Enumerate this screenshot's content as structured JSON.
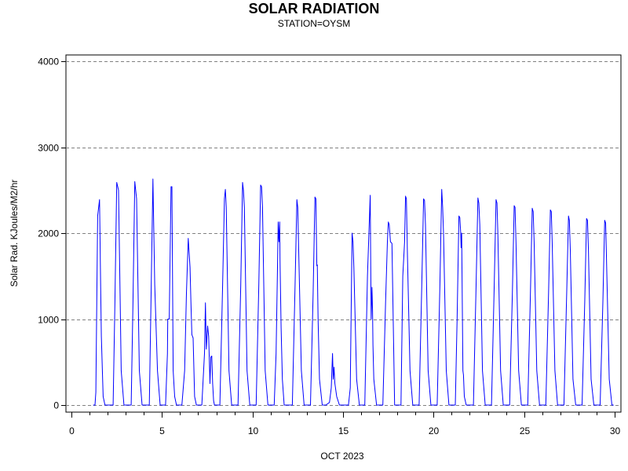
{
  "chart_data": {
    "type": "line",
    "title": "SOLAR RADIATION",
    "subtitle": "STATION=OYSM",
    "xlabel": "OCT 2023",
    "ylabel": "Solar Rad. KJoules/M2/hr",
    "xlim": [
      0,
      30
    ],
    "ylim": [
      0,
      4000
    ],
    "x_ticks": [
      0,
      5,
      10,
      15,
      20,
      25,
      30
    ],
    "y_ticks": [
      0,
      1000,
      2000,
      3000,
      4000
    ],
    "grid": "horizontal dashed",
    "series": [
      {
        "color": "#0000ff",
        "x": [
          1.2,
          1.3,
          1.35,
          1.45,
          1.55,
          1.6,
          1.65,
          1.75,
          1.85,
          2.0,
          2.3,
          2.4,
          2.5,
          2.6,
          2.75,
          2.9,
          3.3,
          3.4,
          3.5,
          3.6,
          3.75,
          3.9,
          4.3,
          4.4,
          4.5,
          4.6,
          4.75,
          4.9,
          5.2,
          5.3,
          5.32,
          5.4,
          5.5,
          5.55,
          5.62,
          5.7,
          5.8,
          5.9,
          6.1,
          6.25,
          6.35,
          6.45,
          6.55,
          6.6,
          6.65,
          6.72,
          6.8,
          6.9,
          7.05,
          7.2,
          7.35,
          7.4,
          7.45,
          7.52,
          7.58,
          7.65,
          7.7,
          7.75,
          7.8,
          7.85,
          7.9,
          8.1,
          8.2,
          8.35,
          8.45,
          8.5,
          8.55,
          8.7,
          8.85,
          9.2,
          9.35,
          9.45,
          9.5,
          9.55,
          9.7,
          9.85,
          10.2,
          10.35,
          10.45,
          10.5,
          10.55,
          10.7,
          10.85,
          11.2,
          11.3,
          11.38,
          11.42,
          11.46,
          11.5,
          11.52,
          11.58,
          11.65,
          11.75,
          11.9,
          12.2,
          12.35,
          12.45,
          12.5,
          12.55,
          12.7,
          12.85,
          13.2,
          13.35,
          13.45,
          13.5,
          13.55,
          13.58,
          13.62,
          13.7,
          13.85,
          14.05,
          14.25,
          14.35,
          14.42,
          14.46,
          14.5,
          14.55,
          14.65,
          14.8,
          14.95,
          15.3,
          15.4,
          15.5,
          15.55,
          15.6,
          15.75,
          15.9,
          16.2,
          16.35,
          16.5,
          16.55,
          16.6,
          16.63,
          16.65,
          16.7,
          16.85,
          17.2,
          17.35,
          17.45,
          17.5,
          17.55,
          17.62,
          17.7,
          17.85,
          18.2,
          18.3,
          18.4,
          18.45,
          18.5,
          18.55,
          18.7,
          18.85,
          19.2,
          19.35,
          19.45,
          19.5,
          19.55,
          19.7,
          19.85,
          20.2,
          20.35,
          20.45,
          20.5,
          20.55,
          20.7,
          20.85,
          21.2,
          21.3,
          21.4,
          21.45,
          21.5,
          21.52,
          21.55,
          21.58,
          21.62,
          21.65,
          21.7,
          21.8,
          22.2,
          22.35,
          22.45,
          22.5,
          22.55,
          22.7,
          22.85,
          23.2,
          23.35,
          23.45,
          23.5,
          23.55,
          23.7,
          23.85,
          24.2,
          24.35,
          24.45,
          24.5,
          24.55,
          24.7,
          24.85,
          25.2,
          25.35,
          25.45,
          25.5,
          25.55,
          25.7,
          25.85,
          26.2,
          26.35,
          26.45,
          26.5,
          26.55,
          26.7,
          26.85,
          27.2,
          27.35,
          27.45,
          27.5,
          27.55,
          27.7,
          27.85,
          28.2,
          28.35,
          28.45,
          28.5,
          28.55,
          28.7,
          28.85,
          29.2,
          29.35,
          29.45,
          29.5,
          29.55,
          29.7,
          29.85,
          29.95
        ],
        "y": [
          0,
          0,
          150,
          2200,
          2390,
          1600,
          800,
          100,
          0,
          0,
          0,
          1200,
          2590,
          2500,
          400,
          0,
          0,
          1200,
          2600,
          2400,
          400,
          0,
          0,
          1300,
          2630,
          1400,
          400,
          0,
          0,
          600,
          1000,
          1000,
          2540,
          2540,
          400,
          100,
          0,
          0,
          0,
          400,
          1300,
          1940,
          1600,
          1200,
          820,
          780,
          100,
          0,
          0,
          0,
          600,
          1190,
          650,
          920,
          800,
          250,
          560,
          570,
          250,
          50,
          0,
          0,
          0,
          1400,
          2400,
          2510,
          2300,
          400,
          0,
          0,
          1400,
          2590,
          2500,
          2300,
          400,
          0,
          0,
          1400,
          2560,
          2540,
          2300,
          400,
          0,
          0,
          600,
          1600,
          2130,
          1900,
          2130,
          1700,
          900,
          300,
          0,
          0,
          0,
          1400,
          2390,
          2300,
          1800,
          400,
          0,
          0,
          1300,
          2420,
          2400,
          1620,
          1630,
          1000,
          300,
          0,
          0,
          30,
          200,
          600,
          300,
          440,
          250,
          100,
          0,
          0,
          0,
          200,
          2000,
          1900,
          1600,
          300,
          0,
          0,
          1500,
          2440,
          1000,
          1370,
          1100,
          700,
          300,
          0,
          0,
          1200,
          1900,
          2130,
          2100,
          1900,
          1880,
          0,
          0,
          1500,
          1900,
          2430,
          2400,
          1800,
          400,
          0,
          0,
          1400,
          2400,
          2380,
          2100,
          400,
          0,
          0,
          1400,
          2510,
          2300,
          2000,
          400,
          0,
          0,
          1000,
          2200,
          2180,
          2000,
          1830,
          2000,
          1300,
          400,
          350,
          100,
          0,
          0,
          1400,
          2410,
          2350,
          2100,
          400,
          0,
          0,
          1400,
          2390,
          2350,
          2000,
          400,
          0,
          0,
          1300,
          2320,
          2300,
          1900,
          400,
          0,
          0,
          1300,
          2290,
          2250,
          1900,
          400,
          0,
          0,
          1300,
          2270,
          2250,
          1900,
          400,
          0,
          0,
          1300,
          2200,
          2150,
          1800,
          300,
          0,
          0,
          1200,
          2170,
          2150,
          1800,
          300,
          0,
          0,
          1200,
          2150,
          2120,
          1700,
          300,
          0,
          0
        ]
      }
    ]
  }
}
